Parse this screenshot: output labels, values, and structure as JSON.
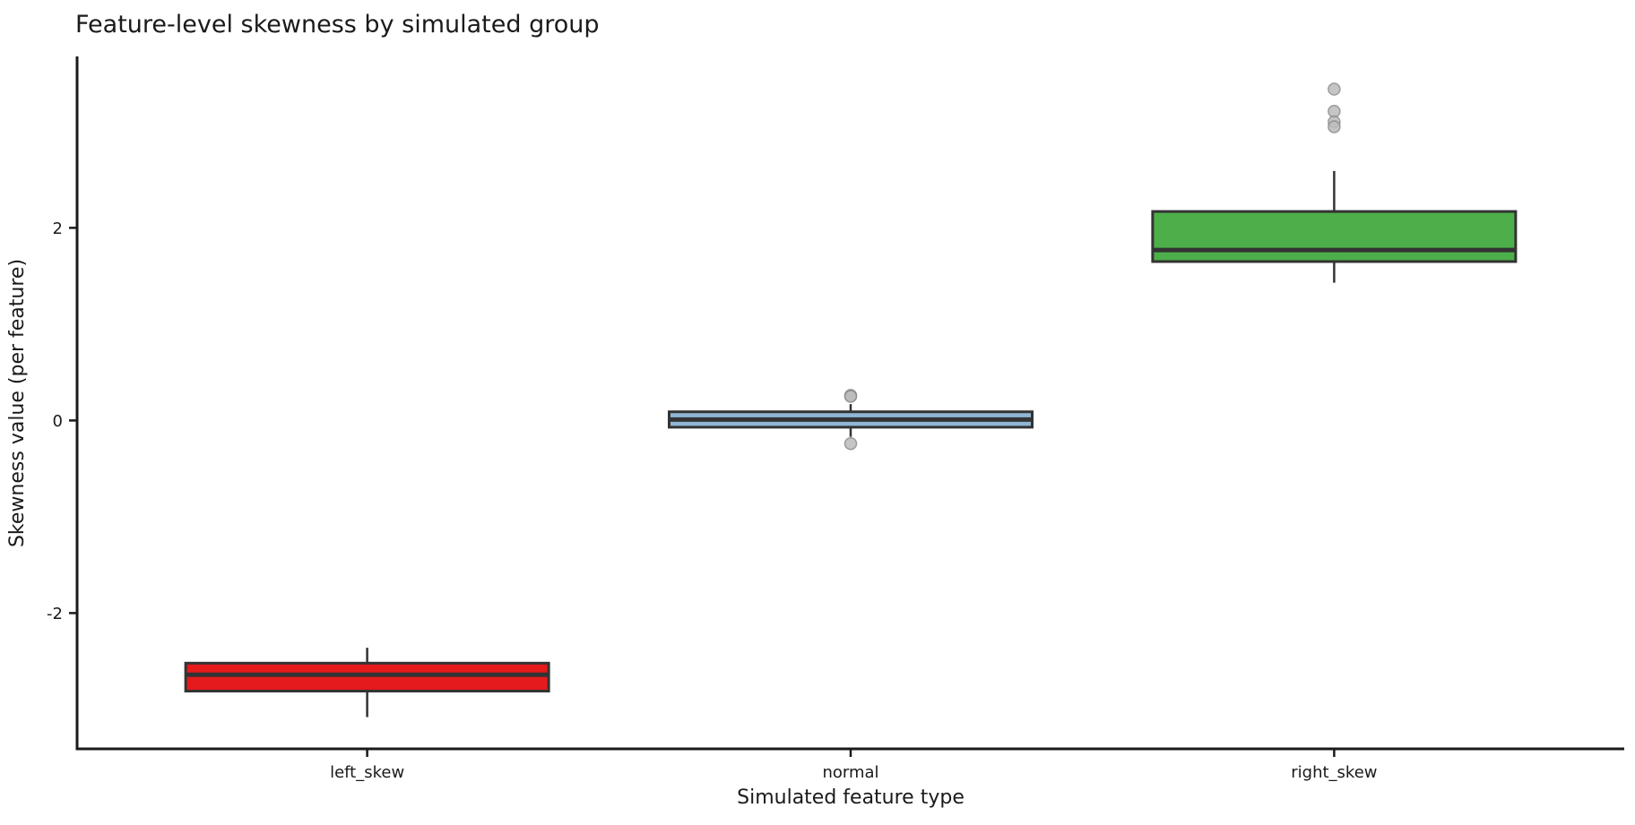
{
  "chart_data": {
    "type": "box",
    "title": "Feature-level skewness by simulated group",
    "xlabel": "Simulated feature type",
    "ylabel": "Skewness value (per feature)",
    "categories": [
      "left_skew",
      "normal",
      "right_skew"
    ],
    "ytick_values": [
      -2,
      0,
      2
    ],
    "ytick_labels": [
      "-2",
      "0",
      "2"
    ],
    "ylim": [
      -3.41,
      3.78
    ],
    "grid": false,
    "legend": "none",
    "series": [
      {
        "name": "left_skew",
        "box_fill": "#e41a1c",
        "whisker_low": -3.08,
        "q1": -2.81,
        "median": -2.64,
        "q3": -2.52,
        "whisker_high": -2.36,
        "outliers": []
      },
      {
        "name": "normal",
        "box_fill": "#8fb6d4",
        "whisker_low": -0.17,
        "q1": -0.07,
        "median": 0.01,
        "q3": 0.09,
        "whisker_high": 0.17,
        "outliers": [
          0.26,
          0.25,
          -0.24
        ]
      },
      {
        "name": "right_skew",
        "box_fill": "#4daf4a",
        "whisker_low": 1.43,
        "q1": 1.65,
        "median": 1.77,
        "q3": 2.17,
        "whisker_high": 2.59,
        "outliers": [
          3.44,
          3.21,
          3.1,
          3.05
        ]
      }
    ],
    "colors": {
      "box_edge": "#333333",
      "median_line": "#333333",
      "whisker": "#333333",
      "flier_fill": "#bcbcbc",
      "flier_edge": "#8a8a8a",
      "spine": "#1a1a1a",
      "text": "#1a1a1a",
      "background": "#ffffff"
    }
  }
}
